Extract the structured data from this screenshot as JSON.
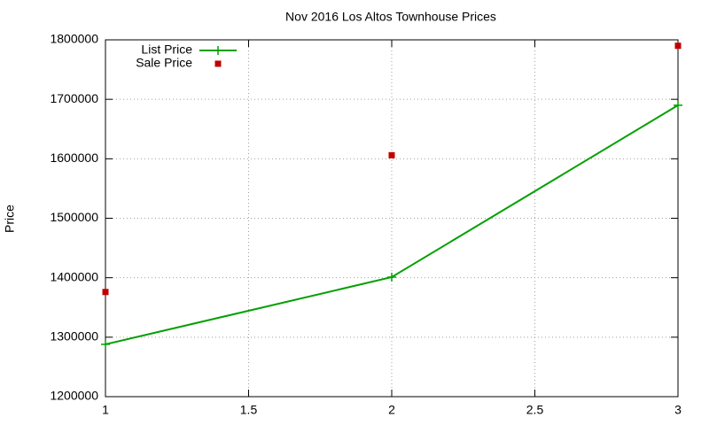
{
  "chart_data": {
    "type": "line",
    "title": "Nov 2016 Los Altos Townhouse Prices",
    "ylabel": "Price",
    "x": [
      1,
      2,
      3
    ],
    "series": [
      {
        "name": "List Price",
        "color": "#00a000",
        "style": "linespoints",
        "values": [
          1288000,
          1401000,
          1690000
        ]
      },
      {
        "name": "Sale Price",
        "color": "#c00000",
        "style": "points",
        "values": [
          1376000,
          1606000,
          1790000
        ]
      }
    ],
    "xlim": [
      1,
      3
    ],
    "xticks": [
      1,
      1.5,
      2,
      2.5,
      3
    ],
    "ylim": [
      1200000,
      1800000
    ],
    "yticks": [
      1200000,
      1300000,
      1400000,
      1500000,
      1600000,
      1700000,
      1800000
    ],
    "grid": true,
    "legend": "top-left"
  }
}
